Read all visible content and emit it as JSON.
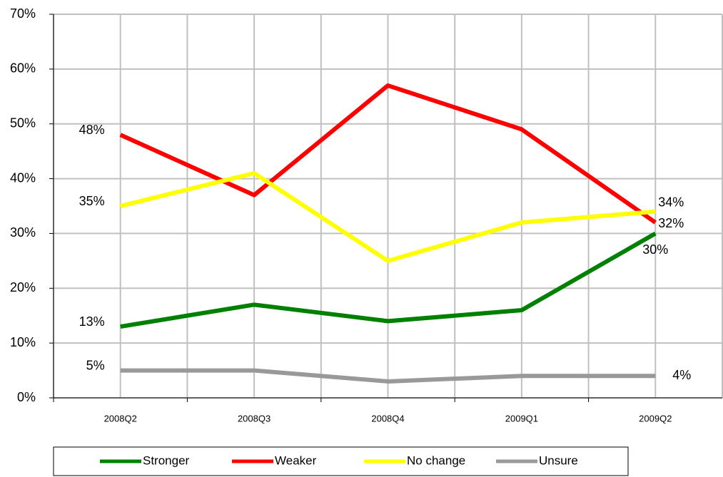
{
  "chart_data": {
    "type": "line",
    "categories": [
      "2008Q2",
      "2008Q3",
      "2008Q4",
      "2009Q1",
      "2009Q2"
    ],
    "series": [
      {
        "name": "Stronger",
        "color": "#008000",
        "values": [
          13,
          17,
          14,
          16,
          30
        ],
        "value_labels": [
          "13%",
          null,
          null,
          null,
          "30%"
        ]
      },
      {
        "name": "Weaker",
        "color": "#ff0000",
        "values": [
          48,
          37,
          57,
          49,
          32
        ],
        "value_labels": [
          "48%",
          null,
          null,
          null,
          "32%"
        ]
      },
      {
        "name": "No change",
        "color": "#ffff00",
        "values": [
          35,
          41,
          25,
          32,
          34
        ],
        "value_labels": [
          "35%",
          null,
          null,
          null,
          "34%"
        ]
      },
      {
        "name": "Unsure",
        "color": "#999999",
        "values": [
          5,
          5,
          3,
          4,
          4
        ],
        "value_labels": [
          "5%",
          null,
          null,
          null,
          "4%"
        ]
      }
    ],
    "ylim": [
      0,
      70
    ],
    "yticks": [
      {
        "value": 0,
        "label": "0%"
      },
      {
        "value": 10,
        "label": "10%"
      },
      {
        "value": 20,
        "label": "20%"
      },
      {
        "value": 30,
        "label": "30%"
      },
      {
        "value": 40,
        "label": "40%"
      },
      {
        "value": 50,
        "label": "50%"
      },
      {
        "value": 60,
        "label": "60%"
      },
      {
        "value": 70,
        "label": "70%"
      }
    ],
    "grid": true
  }
}
